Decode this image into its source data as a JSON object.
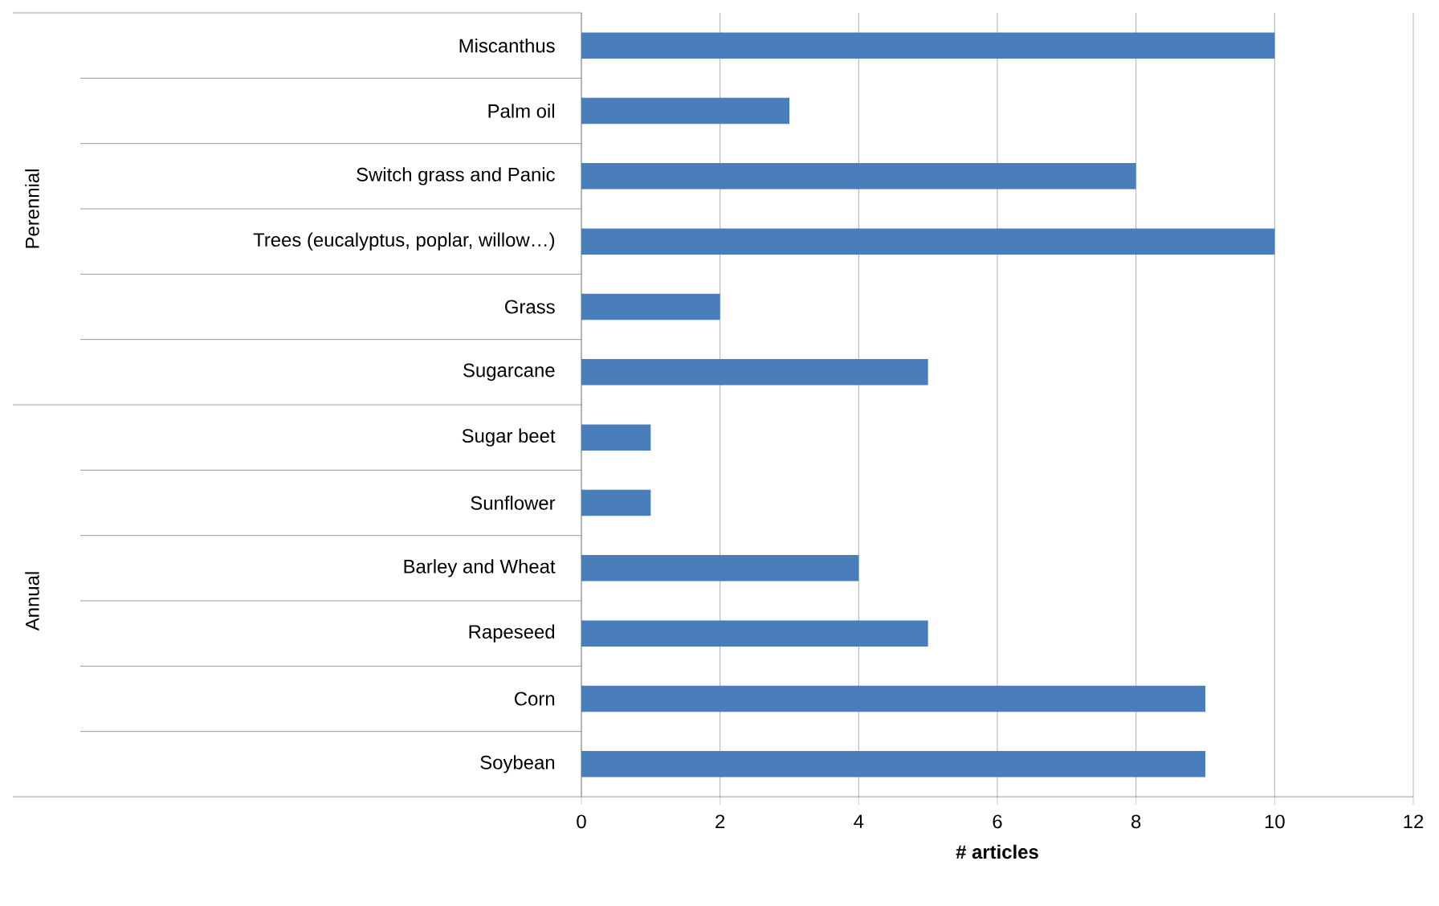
{
  "chart_data": {
    "type": "bar",
    "orientation": "horizontal",
    "categories": [
      "Miscanthus",
      "Palm oil",
      "Switch grass and Panic",
      "Trees (eucalyptus, poplar, willow…)",
      "Grass",
      "Sugarcane",
      "Sugar beet",
      "Sunflower",
      "Barley and Wheat",
      "Rapeseed",
      "Corn",
      "Soybean"
    ],
    "values": [
      10,
      3,
      8,
      10,
      2,
      5,
      1,
      1,
      4,
      5,
      9,
      9
    ],
    "color": "#4a7ebb",
    "xlabel": "# articles",
    "xlim": [
      0,
      12
    ],
    "xticks": [
      0,
      2,
      4,
      6,
      8,
      10,
      12
    ],
    "grid": "x",
    "annotations": [
      "Perennial",
      "Annual"
    ]
  }
}
